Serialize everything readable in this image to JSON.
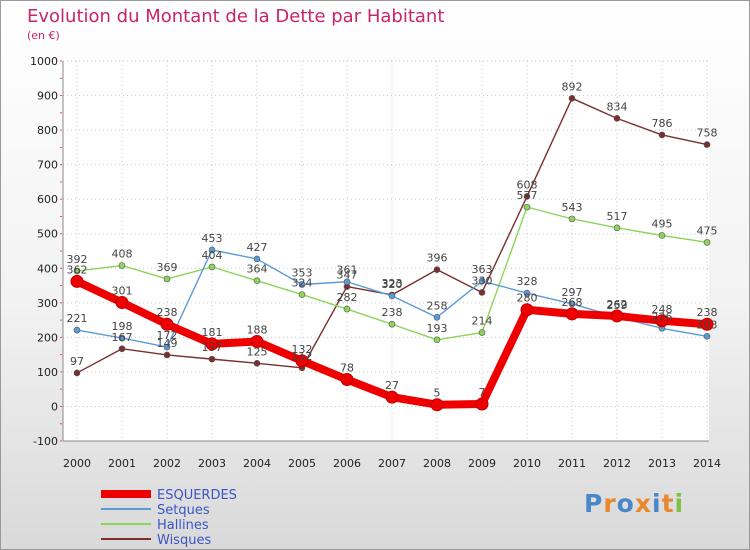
{
  "title": "Evolution du Montant de la Dette par Habitant",
  "subtitle": "(en €)",
  "logo": {
    "text": "Proxiti",
    "colors": [
      "#4a86c8",
      "#e8892e",
      "#4a86c8",
      "#e8892e",
      "#4a86c8",
      "#e8892e",
      "#7cc243"
    ]
  },
  "chart_data": {
    "type": "line",
    "title": "Evolution du Montant de la Dette par Habitant",
    "ylabel": "(en €)",
    "xlabel": "",
    "x": [
      2000,
      2001,
      2002,
      2003,
      2004,
      2005,
      2006,
      2007,
      2008,
      2009,
      2010,
      2011,
      2012,
      2013,
      2014
    ],
    "ylim": [
      -100,
      1000
    ],
    "yticks": [
      -100,
      0,
      100,
      200,
      300,
      400,
      500,
      600,
      700,
      800,
      900,
      1000
    ],
    "grid": true,
    "legend": "bottom-left",
    "series": [
      {
        "name": "Wisques",
        "color": "#7a2e2e",
        "values": [
          97,
          167,
          149,
          137,
          125,
          112,
          347,
          323,
          396,
          330,
          608,
          892,
          834,
          786,
          758
        ]
      },
      {
        "name": "Hallines",
        "color": "#8cd45a",
        "values": [
          392,
          408,
          369,
          404,
          364,
          324,
          282,
          238,
          193,
          214,
          577,
          543,
          517,
          495,
          475
        ]
      },
      {
        "name": "Setques",
        "color": "#5a9bd6",
        "values": [
          221,
          198,
          172,
          453,
          427,
          353,
          361,
          320,
          258,
          363,
          328,
          297,
          259,
          226,
          203
        ]
      },
      {
        "name": "ESQUERDES",
        "color": "#ee0000",
        "values": [
          362,
          301,
          238,
          181,
          188,
          132,
          78,
          27,
          5,
          7,
          280,
          268,
          262,
          248,
          238
        ]
      }
    ],
    "labels": {
      "Wisques": [
        "97",
        "167",
        "149",
        "137",
        "125",
        "112",
        "347",
        "323",
        "396",
        "330",
        "608",
        "892",
        "834",
        "786",
        "758"
      ],
      "Hallines": [
        "392",
        "408",
        "369",
        "404",
        "364",
        "324",
        "282",
        "238",
        "193",
        "214",
        "577",
        "543",
        "517",
        "495",
        "475"
      ],
      "Setques": [
        "221",
        "198",
        "172",
        "453",
        "427",
        "353",
        "361",
        "320",
        "258",
        "363",
        "328",
        "297",
        "259",
        "226",
        "203"
      ],
      "ESQUERDES": [
        "362",
        "301",
        "238",
        "181",
        "188",
        "132",
        "78",
        "27",
        "5",
        "7",
        "280",
        "268",
        "262",
        "248",
        "238"
      ]
    },
    "legend_order": [
      "ESQUERDES",
      "Setques",
      "Hallines",
      "Wisques"
    ]
  }
}
